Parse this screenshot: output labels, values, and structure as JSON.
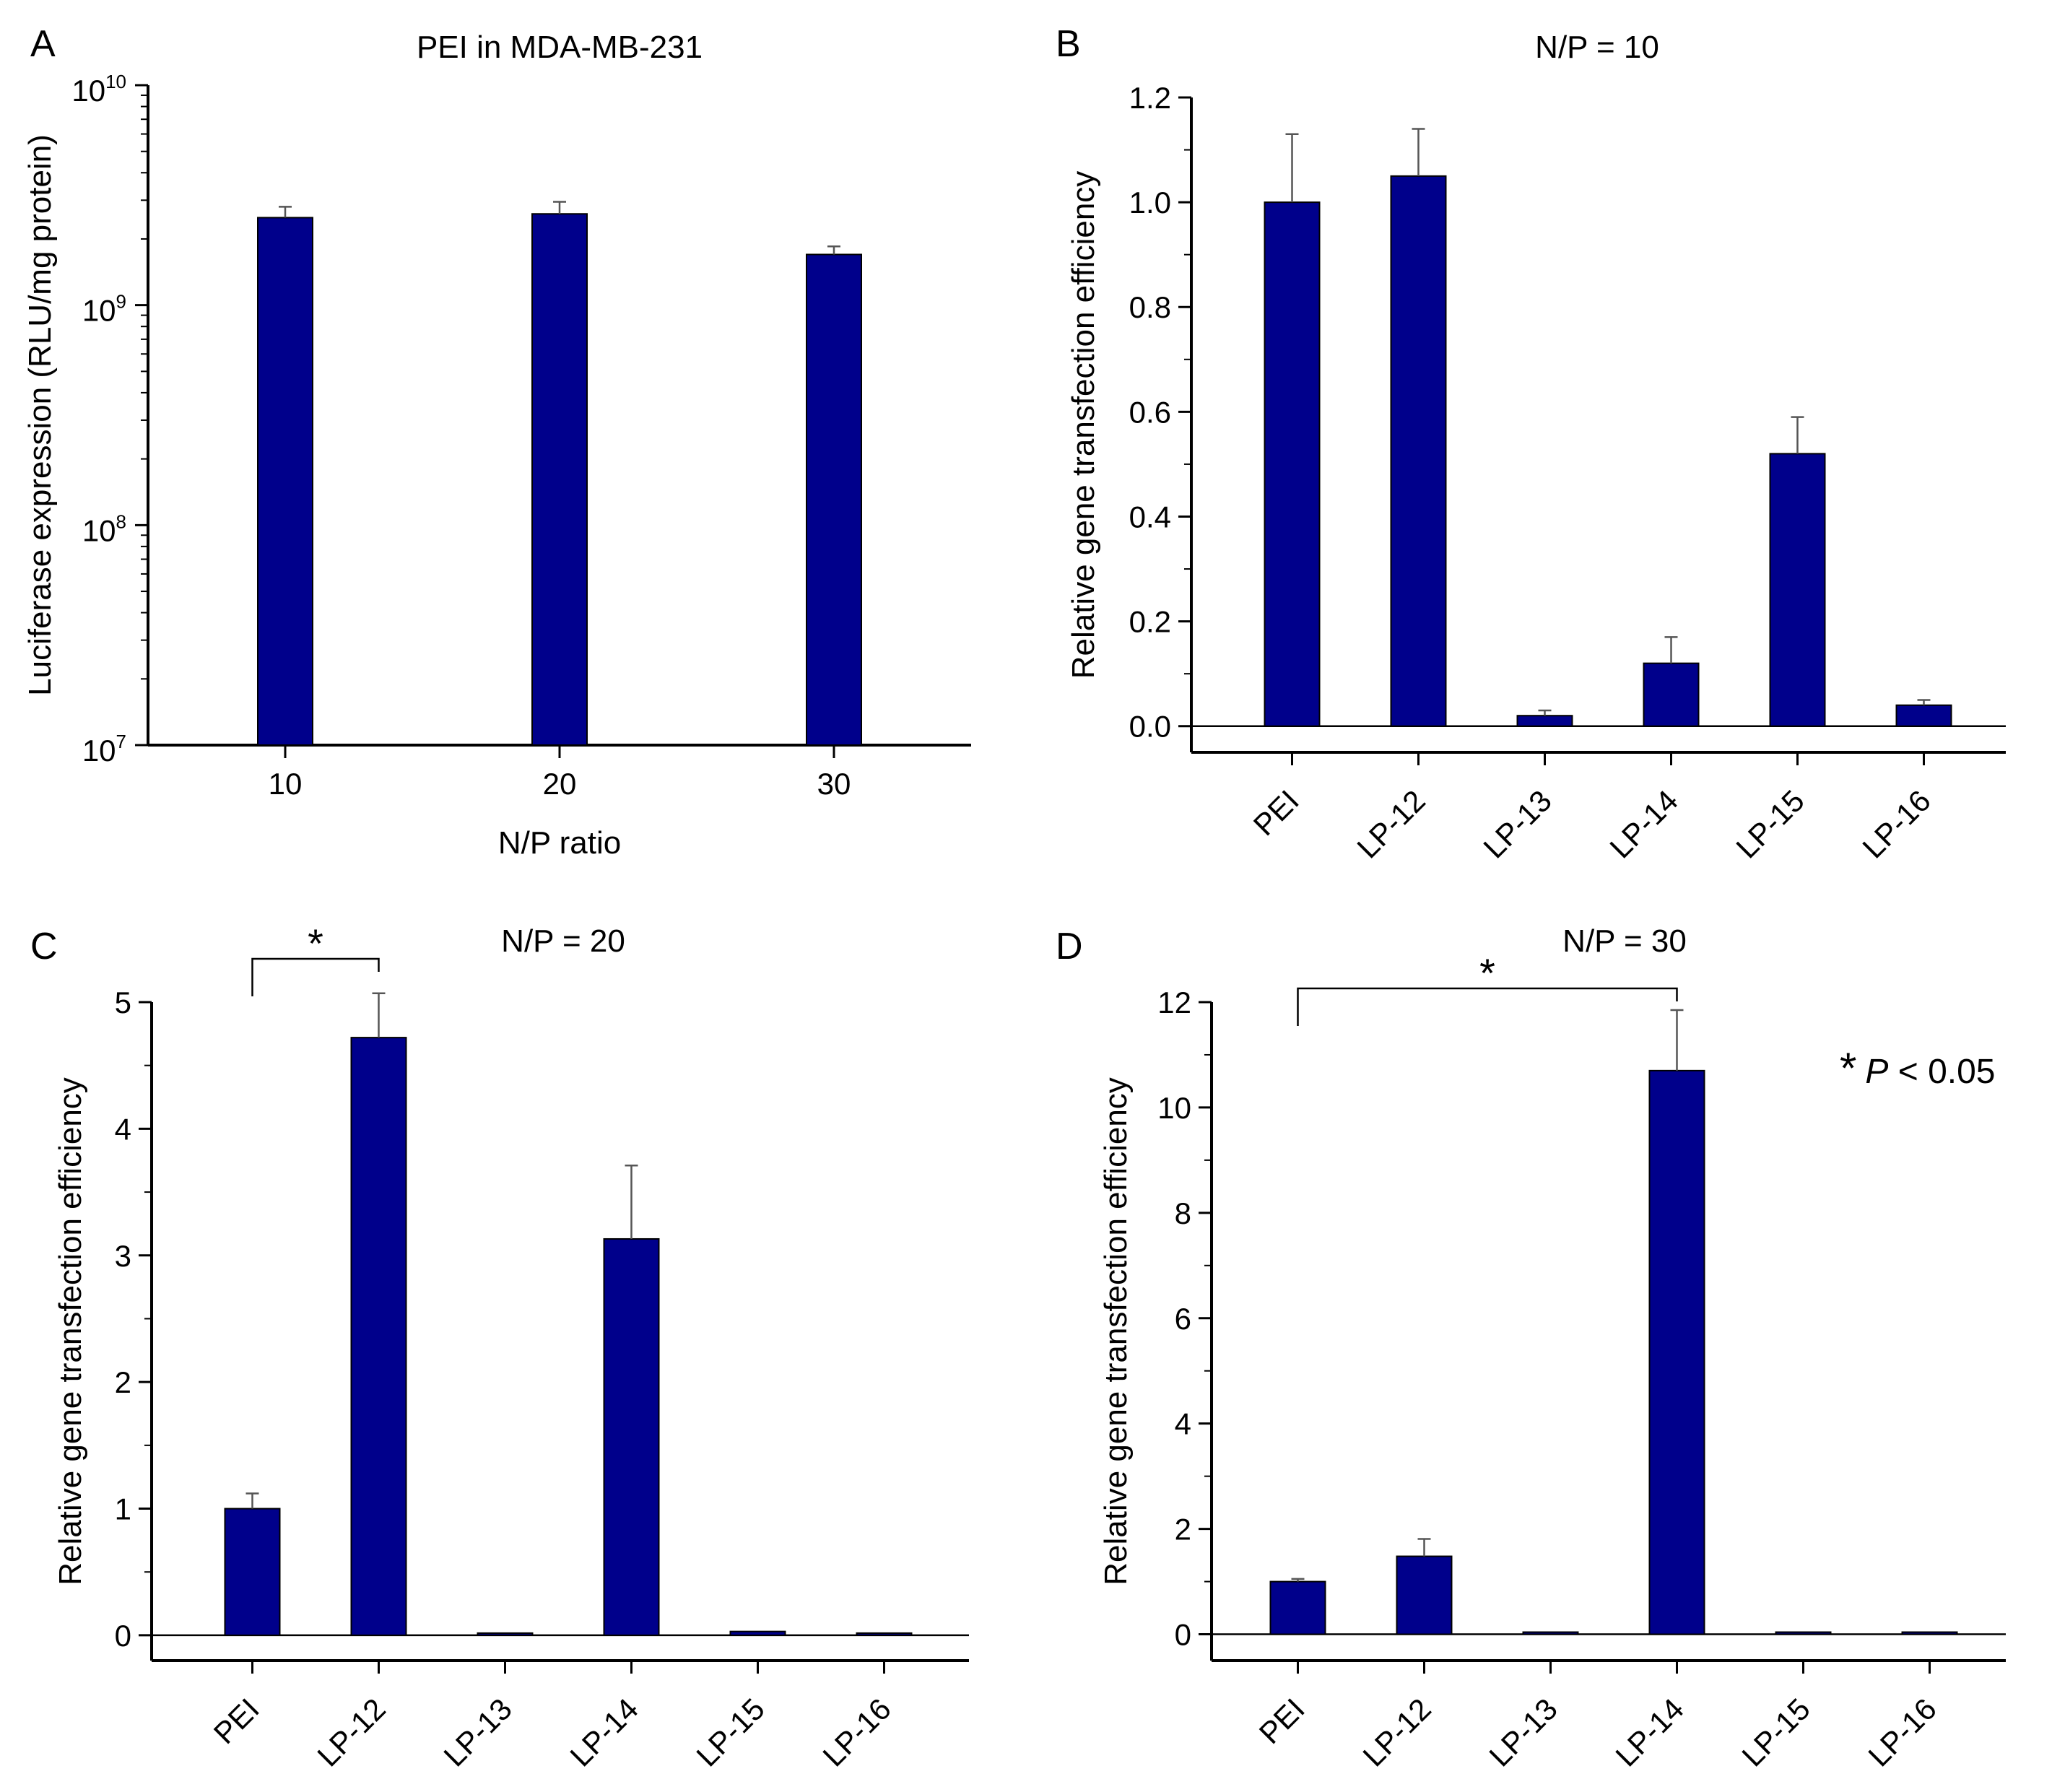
{
  "figure": {
    "colors": {
      "bar": "#00008b",
      "bar_edge": "#000000",
      "axis": "#000000",
      "error_bar": "#555555"
    }
  },
  "chart_data": [
    {
      "id": "A",
      "panel_label": "A",
      "type": "bar",
      "title": "PEI in MDA-MB-231",
      "xlabel": "N/P ratio",
      "ylabel": "Luciferase expression (RLU/mg protein)",
      "yscale": "log",
      "ylim": [
        10000000,
        10000000000
      ],
      "yticks": [
        {
          "base": "10",
          "exp": "7",
          "value": 10000000
        },
        {
          "base": "10",
          "exp": "8",
          "value": 100000000
        },
        {
          "base": "10",
          "exp": "9",
          "value": 1000000000
        },
        {
          "base": "10",
          "exp": "10",
          "value": 10000000000
        }
      ],
      "categories": [
        "10",
        "20",
        "30"
      ],
      "values": [
        2500000000,
        2600000000,
        1700000000
      ],
      "errors": [
        300000000,
        350000000,
        150000000
      ]
    },
    {
      "id": "B",
      "panel_label": "B",
      "type": "bar",
      "title": "N/P = 10",
      "xlabel": "",
      "ylabel": "Relative gene transfection efficiency",
      "ylim": [
        -0.05,
        1.2
      ],
      "yticks": [
        "0.0",
        "0.2",
        "0.4",
        "0.6",
        "0.8",
        "1.0",
        "1.2"
      ],
      "categories": [
        "PEI",
        "LP-12",
        "LP-13",
        "LP-14",
        "LP-15",
        "LP-16"
      ],
      "values": [
        1.0,
        1.05,
        0.02,
        0.12,
        0.52,
        0.04
      ],
      "errors": [
        0.13,
        0.09,
        0.01,
        0.05,
        0.07,
        0.01
      ]
    },
    {
      "id": "C",
      "panel_label": "C",
      "type": "bar",
      "title": "N/P = 20",
      "xlabel": "",
      "ylabel": "Relative gene transfection efficiency",
      "ylim": [
        -0.2,
        5
      ],
      "yticks": [
        "0",
        "1",
        "2",
        "3",
        "4",
        "5"
      ],
      "categories": [
        "PEI",
        "LP-12",
        "LP-13",
        "LP-14",
        "LP-15",
        "LP-16"
      ],
      "values": [
        1.0,
        4.72,
        0.01,
        3.13,
        0.03,
        0.01
      ],
      "errors": [
        0.12,
        0.35,
        0.0,
        0.58,
        0.0,
        0.0
      ],
      "significance": {
        "from": 0,
        "to": 1,
        "label": "*"
      }
    },
    {
      "id": "D",
      "panel_label": "D",
      "type": "bar",
      "title": "N/P = 30",
      "xlabel": "",
      "ylabel": "Relative gene transfection efficiency",
      "ylim": [
        -0.5,
        12
      ],
      "yticks": [
        "0",
        "2",
        "4",
        "6",
        "8",
        "10",
        "12"
      ],
      "categories": [
        "PEI",
        "LP-12",
        "LP-13",
        "LP-14",
        "LP-15",
        "LP-16"
      ],
      "values": [
        1.0,
        1.48,
        0.02,
        10.7,
        0.03,
        0.03
      ],
      "errors": [
        0.05,
        0.33,
        0.0,
        1.15,
        0.0,
        0.0
      ],
      "significance": {
        "from": 0,
        "to": 3,
        "label": "*"
      },
      "note": {
        "star": "*",
        "p": "P",
        "rest": " < 0.05"
      }
    }
  ]
}
